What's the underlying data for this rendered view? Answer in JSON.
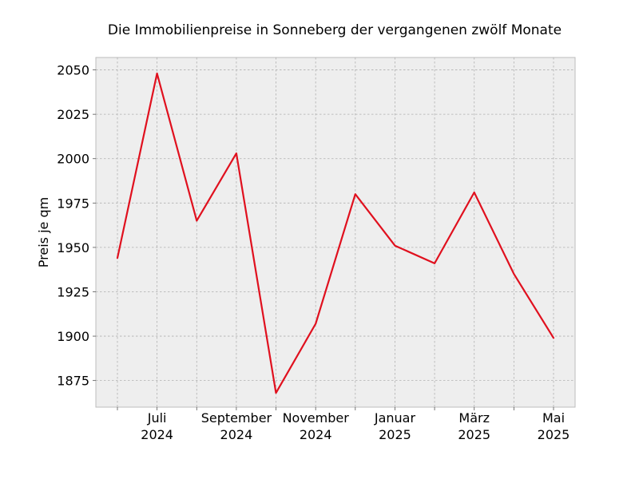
{
  "chart_data": {
    "type": "line",
    "title": "Die Immobilienpreise in Sonneberg der vergangenen zwölf Monate",
    "ylabel": "Preis je qm",
    "xlabel": "",
    "x": [
      "2024-06",
      "2024-07",
      "2024-08",
      "2024-09",
      "2024-10",
      "2024-11",
      "2024-12",
      "2025-01",
      "2025-02",
      "2025-03",
      "2025-04",
      "2025-05"
    ],
    "series": [
      {
        "values": [
          1944,
          2048,
          1965,
          2003,
          1868,
          1907,
          1980,
          1951,
          1941,
          1981,
          1935,
          1899
        ],
        "color": "#e0101e"
      }
    ],
    "ylim": [
      1860,
      2057
    ],
    "yticks": [
      1875,
      1900,
      1925,
      1950,
      1975,
      2000,
      2025,
      2050
    ],
    "xticks": [
      {
        "x": "2024-07",
        "month": "Juli",
        "year": "2024"
      },
      {
        "x": "2024-09",
        "month": "September",
        "year": "2024"
      },
      {
        "x": "2024-11",
        "month": "November",
        "year": "2024"
      },
      {
        "x": "2025-01",
        "month": "Januar",
        "year": "2025"
      },
      {
        "x": "2025-03",
        "month": "März",
        "year": "2025"
      },
      {
        "x": "2025-05",
        "month": "Mai",
        "year": "2025"
      }
    ],
    "grid": true,
    "background": "#eeeeee"
  }
}
